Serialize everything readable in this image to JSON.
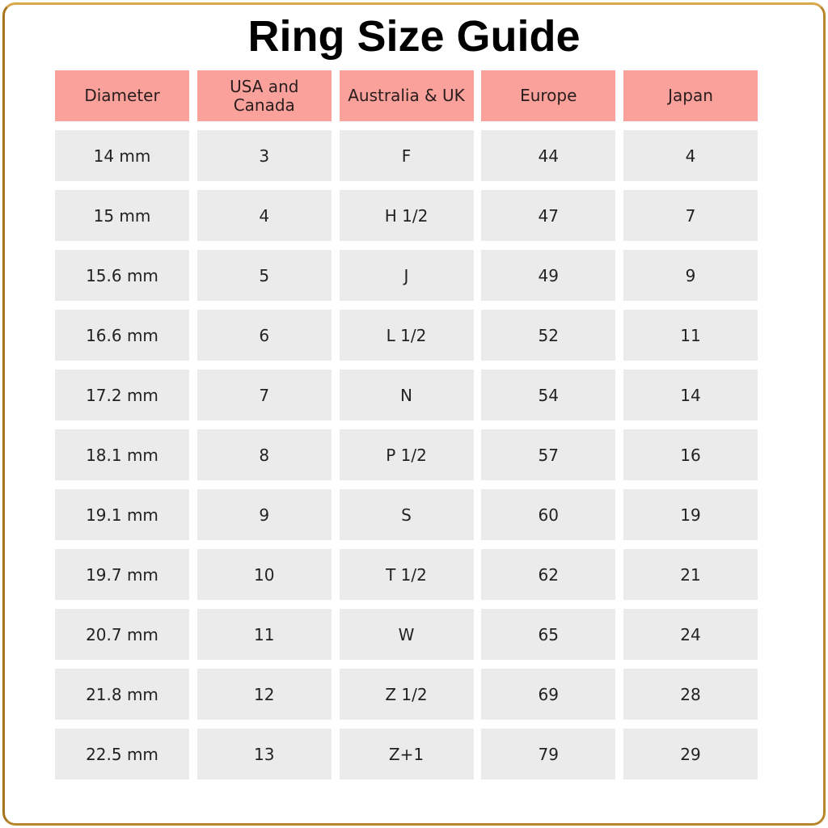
{
  "title": "Ring Size Guide",
  "colors": {
    "header": "#f9a19a",
    "cell": "#ebebeb",
    "frame": "#b8862b"
  },
  "headers": [
    "Diameter",
    "USA and Canada",
    "Australia & UK",
    "Europe",
    "Japan"
  ],
  "rows": [
    [
      "14 mm",
      "3",
      "F",
      "44",
      "4"
    ],
    [
      "15 mm",
      "4",
      "H 1/2",
      "47",
      "7"
    ],
    [
      "15.6 mm",
      "5",
      "J",
      "49",
      "9"
    ],
    [
      "16.6 mm",
      "6",
      "L 1/2",
      "52",
      "11"
    ],
    [
      "17.2 mm",
      "7",
      "N",
      "54",
      "14"
    ],
    [
      "18.1 mm",
      "8",
      "P 1/2",
      "57",
      "16"
    ],
    [
      "19.1 mm",
      "9",
      "S",
      "60",
      "19"
    ],
    [
      "19.7 mm",
      "10",
      "T 1/2",
      "62",
      "21"
    ],
    [
      "20.7 mm",
      "11",
      "W",
      "65",
      "24"
    ],
    [
      "21.8 mm",
      "12",
      "Z 1/2",
      "69",
      "28"
    ],
    [
      "22.5 mm",
      "13",
      "Z+1",
      "79",
      "29"
    ]
  ]
}
